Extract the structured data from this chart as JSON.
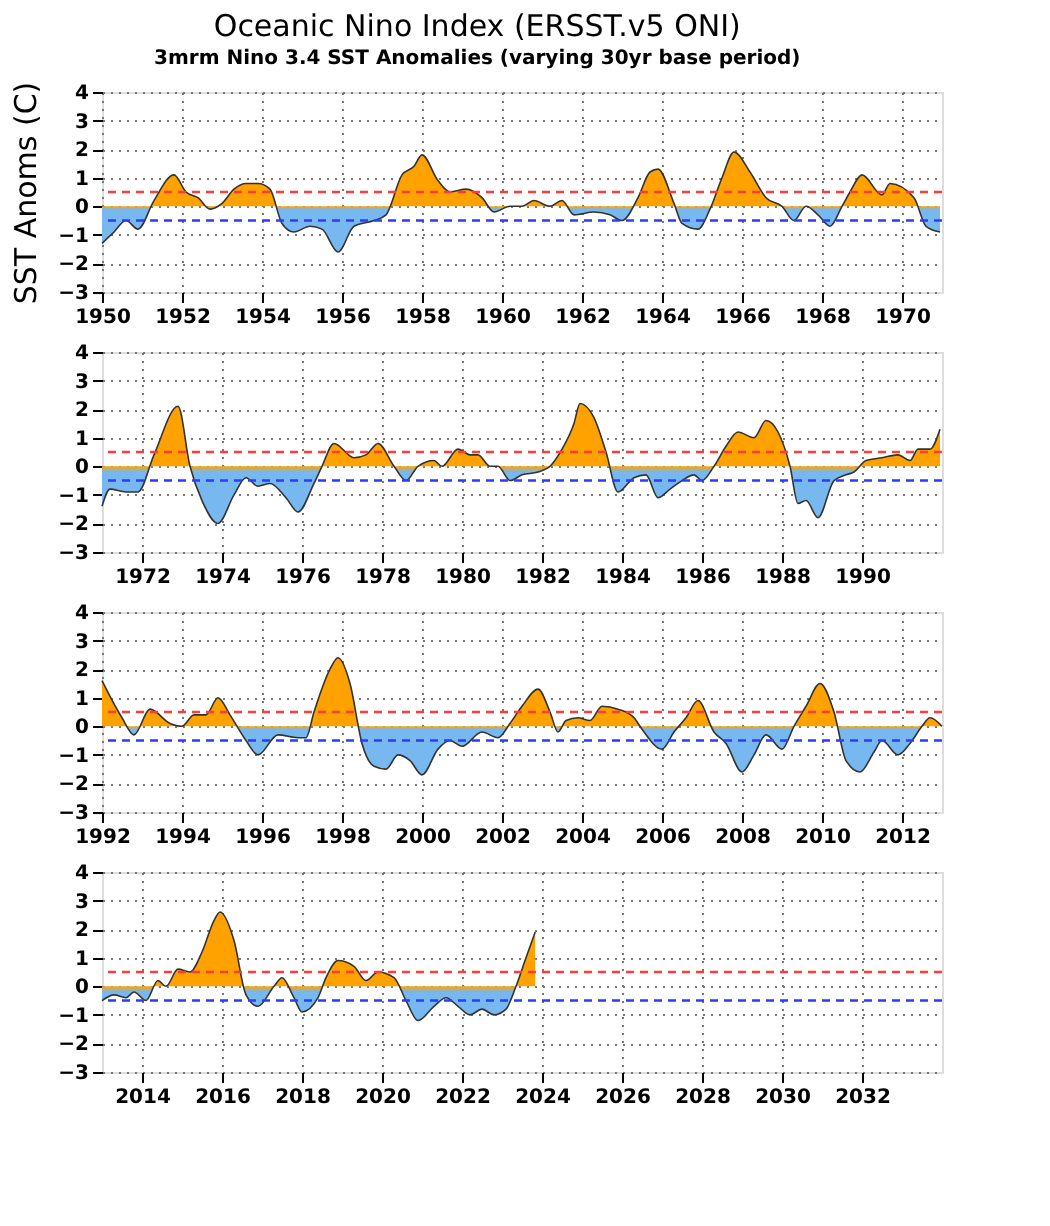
{
  "chart_data": [
    {
      "type": "area",
      "title": "Oceanic Nino Index (ERSST.v5 ONI)",
      "subtitle": "3mrm Nino 3.4 SST Anomalies (varying 30yr base period)",
      "ylabel": "SST Anoms (C)",
      "xlim": [
        1950,
        1971
      ],
      "xticks": [
        1950,
        1952,
        1954,
        1956,
        1958,
        1960,
        1962,
        1964,
        1966,
        1968,
        1970
      ],
      "ylim": [
        -3,
        4
      ],
      "yticks": [
        -3,
        -2,
        -1,
        0,
        1,
        2,
        3,
        4
      ],
      "grid": true,
      "ref_lines": [
        {
          "axis": "y",
          "value": 0.5,
          "color": "#ff3b3b",
          "line_style": "dashed"
        },
        {
          "axis": "y",
          "value": -0.5,
          "color": "#2b3bff",
          "line_style": "dashed"
        }
      ],
      "series": [
        {
          "color": "#333333",
          "colors": [
            "#78b8f0",
            "#78b8f0",
            "#78b8f0",
            "#78b8f0",
            "#ffa200",
            "#ffa200",
            "#ffa200",
            "#ffa200",
            "#78b8f0",
            "#ffa200",
            "#ffa200",
            "#ffa200",
            "#ffa200",
            "#ffa200",
            "#78b8f0",
            "#78b8f0",
            "#78b8f0",
            "#78b8f0",
            "#78b8f0",
            "#78b8f0",
            "#78b8f0",
            "#78b8f0",
            "#ffa200",
            "#ffa200",
            "#ffa200",
            "#ffa200",
            "#ffa200",
            "#ffa200",
            "#ffa200",
            "#78b8f0",
            "#ffa200",
            "#ffa200",
            "#ffa200",
            "#ffa200",
            "#ffa200",
            "#78b8f0",
            "#78b8f0",
            "#78b8f0",
            "#78b8f0",
            "#ffa200",
            "#ffa200",
            "#ffa200",
            "#ffa200",
            "#78b8f0",
            "#78b8f0",
            "#78b8f0",
            "#ffa200",
            "#ffa200",
            "#ffa200",
            "#ffa200",
            "#ffa200",
            "#78b8f0",
            "#ffa200",
            "#78b8f0",
            "#78b8f0",
            "#ffa200",
            "#ffa200",
            "#ffa200",
            "#ffa200",
            "#ffa200",
            "#ffa200",
            "#78b8f0",
            "#78b8f0"
          ],
          "x": [
            1950.0,
            1950.3,
            1950.6,
            1950.9,
            1951.3,
            1951.8,
            1952.1,
            1952.4,
            1952.7,
            1953.0,
            1953.3,
            1953.6,
            1953.9,
            1954.2,
            1954.5,
            1954.8,
            1955.2,
            1955.5,
            1955.9,
            1956.3,
            1956.8,
            1957.1,
            1957.5,
            1957.8,
            1958.0,
            1958.4,
            1958.7,
            1959.1,
            1959.5,
            1959.8,
            1960.2,
            1960.5,
            1960.8,
            1961.2,
            1961.5,
            1961.8,
            1962.3,
            1962.7,
            1963.0,
            1963.4,
            1963.7,
            1963.9,
            1964.3,
            1964.5,
            1964.9,
            1965.2,
            1965.5,
            1965.8,
            1966.2,
            1966.6,
            1967.0,
            1967.3,
            1967.6,
            1967.9,
            1968.2,
            1968.5,
            1968.7,
            1969.0,
            1969.5,
            1969.7,
            1970.3,
            1970.6,
            1970.95
          ],
          "values": [
            -1.3,
            -0.9,
            -0.5,
            -0.8,
            0.2,
            1.1,
            0.5,
            0.3,
            -0.1,
            0.1,
            0.6,
            0.8,
            0.8,
            0.6,
            -0.6,
            -0.9,
            -0.7,
            -0.8,
            -1.6,
            -0.7,
            -0.5,
            -0.3,
            1.1,
            1.4,
            1.8,
            0.9,
            0.5,
            0.6,
            0.3,
            -0.2,
            0.0,
            0.0,
            0.2,
            0.0,
            0.2,
            -0.3,
            -0.2,
            -0.3,
            -0.5,
            0.3,
            1.2,
            1.3,
            0.1,
            -0.6,
            -0.8,
            -0.1,
            1.0,
            1.9,
            1.2,
            0.3,
            0.0,
            -0.5,
            0.0,
            -0.3,
            -0.7,
            0.0,
            0.5,
            1.1,
            0.4,
            0.8,
            0.3,
            -0.7,
            -0.9
          ]
        }
      ]
    },
    {
      "type": "area",
      "xlim": [
        1971,
        1992
      ],
      "xticks": [
        1972,
        1974,
        1976,
        1978,
        1980,
        1982,
        1984,
        1986,
        1988,
        1990
      ],
      "ylim": [
        -3,
        4
      ],
      "yticks": [
        -3,
        -2,
        -1,
        0,
        1,
        2,
        3,
        4
      ],
      "grid": true,
      "ref_lines": [
        {
          "axis": "y",
          "value": 0.5,
          "color": "#ff3b3b",
          "line_style": "dashed"
        },
        {
          "axis": "y",
          "value": -0.5,
          "color": "#2b3bff",
          "line_style": "dashed"
        }
      ],
      "series": [
        {
          "color": "#333333",
          "colors": [
            "#78b8f0",
            "#78b8f0",
            "#78b8f0",
            "#78b8f0",
            "#ffa200",
            "#ffa200",
            "#ffa200",
            "#78b8f0",
            "#78b8f0",
            "#78b8f0",
            "#78b8f0",
            "#78b8f0",
            "#78b8f0",
            "#78b8f0",
            "#78b8f0",
            "#78b8f0",
            "#ffa200",
            "#ffa200",
            "#ffa200",
            "#ffa200",
            "#ffa200",
            "#ffa200",
            "#78b8f0",
            "#ffa200",
            "#ffa200",
            "#ffa200",
            "#ffa200",
            "#ffa200",
            "#ffa200",
            "#ffa200",
            "#ffa200",
            "#78b8f0",
            "#78b8f0",
            "#78b8f0",
            "#ffa200",
            "#ffa200",
            "#ffa200",
            "#ffa200",
            "#ffa200",
            "#ffa200",
            "#78b8f0",
            "#78b8f0",
            "#78b8f0",
            "#78b8f0",
            "#78b8f0",
            "#78b8f0",
            "#78b8f0",
            "#78b8f0",
            "#ffa200",
            "#ffa200",
            "#ffa200",
            "#ffa200",
            "#ffa200",
            "#ffa200",
            "#ffa200",
            "#78b8f0",
            "#78b8f0",
            "#78b8f0",
            "#78b8f0",
            "#78b8f0",
            "#78b8f0",
            "#ffa200",
            "#ffa200",
            "#ffa200",
            "#ffa200",
            "#ffa200",
            "#ffa200",
            "#ffa200"
          ],
          "x": [
            1971.0,
            1971.2,
            1971.6,
            1971.9,
            1972.3,
            1972.9,
            1973.2,
            1973.5,
            1973.9,
            1974.3,
            1974.6,
            1974.9,
            1975.2,
            1975.6,
            1975.9,
            1976.3,
            1976.5,
            1976.8,
            1977.3,
            1977.6,
            1977.9,
            1978.3,
            1978.6,
            1978.9,
            1979.3,
            1979.5,
            1979.9,
            1980.2,
            1980.4,
            1980.7,
            1980.9,
            1981.2,
            1981.5,
            1981.9,
            1982.2,
            1982.5,
            1982.8,
            1982.95,
            1983.3,
            1983.6,
            1983.9,
            1984.3,
            1984.6,
            1984.9,
            1985.2,
            1985.5,
            1985.8,
            1986.0,
            1986.3,
            1986.6,
            1986.9,
            1987.3,
            1987.6,
            1987.9,
            1988.2,
            1988.4,
            1988.6,
            1988.9,
            1989.3,
            1989.6,
            1989.8,
            1990.1,
            1990.5,
            1990.9,
            1991.2,
            1991.4,
            1991.7,
            1991.95
          ],
          "values": [
            -1.4,
            -0.8,
            -0.9,
            -0.9,
            0.4,
            2.1,
            0.0,
            -1.2,
            -2.0,
            -1.0,
            -0.4,
            -0.7,
            -0.6,
            -1.1,
            -1.6,
            -0.6,
            0.0,
            0.8,
            0.3,
            0.4,
            0.8,
            0.0,
            -0.5,
            0.0,
            0.2,
            0.0,
            0.6,
            0.4,
            0.4,
            0.0,
            0.0,
            -0.5,
            -0.3,
            -0.2,
            0.0,
            0.6,
            1.5,
            2.2,
            1.7,
            0.5,
            -0.9,
            -0.4,
            -0.3,
            -1.1,
            -0.8,
            -0.5,
            -0.3,
            -0.5,
            0.0,
            0.7,
            1.2,
            1.0,
            1.6,
            1.2,
            0.0,
            -1.3,
            -1.2,
            -1.8,
            -0.5,
            -0.3,
            -0.2,
            0.2,
            0.3,
            0.4,
            0.2,
            0.6,
            0.6,
            1.3
          ]
        }
      ]
    },
    {
      "type": "area",
      "xlim": [
        1992,
        2013
      ],
      "xticks": [
        1992,
        1994,
        1996,
        1998,
        2000,
        2002,
        2004,
        2006,
        2008,
        2010,
        2012
      ],
      "ylim": [
        -3,
        4
      ],
      "yticks": [
        -3,
        -2,
        -1,
        0,
        1,
        2,
        3,
        4
      ],
      "grid": true,
      "ref_lines": [
        {
          "axis": "y",
          "value": 0.5,
          "color": "#ff3b3b",
          "line_style": "dashed"
        },
        {
          "axis": "y",
          "value": -0.5,
          "color": "#2b3bff",
          "line_style": "dashed"
        }
      ],
      "series": [
        {
          "color": "#333333",
          "colors": [
            "#ffa200",
            "#ffa200",
            "#78b8f0",
            "#ffa200",
            "#ffa200",
            "#ffa200",
            "#ffa200",
            "#ffa200",
            "#ffa200",
            "#ffa200",
            "#78b8f0",
            "#78b8f0",
            "#78b8f0",
            "#78b8f0",
            "#78b8f0",
            "#ffa200",
            "#ffa200",
            "#ffa200",
            "#ffa200",
            "#78b8f0",
            "#78b8f0",
            "#78b8f0",
            "#78b8f0",
            "#78b8f0",
            "#78b8f0",
            "#78b8f0",
            "#78b8f0",
            "#78b8f0",
            "#78b8f0",
            "#78b8f0",
            "#ffa200",
            "#ffa200",
            "#ffa200",
            "#ffa200",
            "#78b8f0",
            "#ffa200",
            "#ffa200",
            "#ffa200",
            "#ffa200",
            "#ffa200",
            "#ffa200",
            "#78b8f0",
            "#78b8f0",
            "#78b8f0",
            "#ffa200",
            "#ffa200",
            "#78b8f0",
            "#78b8f0",
            "#78b8f0",
            "#78b8f0",
            "#78b8f0",
            "#78b8f0",
            "#ffa200",
            "#ffa200",
            "#ffa200",
            "#ffa200",
            "#78b8f0",
            "#78b8f0",
            "#78b8f0",
            "#78b8f0",
            "#78b8f0",
            "#78b8f0",
            "#ffa200",
            "#ffa200",
            "#ffa200"
          ],
          "x": [
            1992.0,
            1992.5,
            1992.8,
            1993.2,
            1993.7,
            1994.0,
            1994.3,
            1994.6,
            1994.9,
            1995.2,
            1995.6,
            1995.9,
            1996.4,
            1996.9,
            1997.1,
            1997.3,
            1997.7,
            1997.9,
            1998.2,
            1998.5,
            1998.8,
            1999.1,
            1999.4,
            1999.7,
            2000.0,
            2000.4,
            2000.7,
            2001.0,
            2001.5,
            2001.9,
            2002.2,
            2002.5,
            2002.9,
            2003.2,
            2003.4,
            2003.6,
            2003.9,
            2004.2,
            2004.5,
            2004.9,
            2005.3,
            2005.5,
            2006.0,
            2006.3,
            2006.6,
            2006.9,
            2007.3,
            2007.6,
            2008.0,
            2008.3,
            2008.6,
            2009.0,
            2009.3,
            2009.6,
            2009.95,
            2010.3,
            2010.6,
            2010.95,
            2011.3,
            2011.5,
            2011.9,
            2012.2,
            2012.5,
            2012.7,
            2013.0
          ],
          "values": [
            1.6,
            0.3,
            -0.3,
            0.6,
            0.1,
            0.0,
            0.4,
            0.4,
            1.0,
            0.4,
            -0.5,
            -1.0,
            -0.3,
            -0.4,
            -0.4,
            0.5,
            2.0,
            2.4,
            1.5,
            -0.6,
            -1.4,
            -1.5,
            -1.0,
            -1.2,
            -1.7,
            -0.8,
            -0.5,
            -0.7,
            -0.2,
            -0.4,
            0.1,
            0.7,
            1.3,
            0.5,
            -0.2,
            0.2,
            0.3,
            0.2,
            0.7,
            0.6,
            0.3,
            -0.1,
            -0.8,
            -0.2,
            0.3,
            0.9,
            -0.2,
            -0.6,
            -1.6,
            -1.0,
            -0.3,
            -0.8,
            0.0,
            0.7,
            1.5,
            0.5,
            -1.2,
            -1.6,
            -0.9,
            -0.5,
            -1.0,
            -0.6,
            0.0,
            0.3,
            0.0
          ]
        }
      ]
    },
    {
      "type": "area",
      "xlim": [
        2013,
        2034
      ],
      "xticks": [
        2014,
        2016,
        2018,
        2020,
        2022,
        2024,
        2026,
        2028,
        2030,
        2032
      ],
      "ylim": [
        -3,
        4
      ],
      "yticks": [
        -3,
        -2,
        -1,
        0,
        1,
        2,
        3,
        4
      ],
      "grid": true,
      "ref_lines": [
        {
          "axis": "y",
          "value": 0.5,
          "color": "#ff3b3b",
          "line_style": "dashed"
        },
        {
          "axis": "y",
          "value": -0.5,
          "color": "#2b3bff",
          "line_style": "dashed"
        }
      ],
      "series": [
        {
          "color": "#333333",
          "colors": [
            "#78b8f0",
            "#78b8f0",
            "#78b8f0",
            "#78b8f0",
            "#78b8f0",
            "#ffa200",
            "#ffa200",
            "#ffa200",
            "#ffa200",
            "#ffa200",
            "#ffa200",
            "#ffa200",
            "#ffa200",
            "#78b8f0",
            "#78b8f0",
            "#ffa200",
            "#ffa200",
            "#78b8f0",
            "#78b8f0",
            "#78b8f0",
            "#ffa200",
            "#ffa200",
            "#ffa200",
            "#ffa200",
            "#ffa200",
            "#ffa200",
            "#78b8f0",
            "#78b8f0",
            "#78b8f0",
            "#78b8f0",
            "#78b8f0",
            "#78b8f0",
            "#78b8f0",
            "#78b8f0",
            "#78b8f0",
            "#ffa200",
            "#ffa200",
            "#ffa200"
          ],
          "x": [
            2013.0,
            2013.3,
            2013.6,
            2013.8,
            2014.1,
            2014.4,
            2014.6,
            2014.9,
            2015.2,
            2015.5,
            2015.8,
            2015.95,
            2016.3,
            2016.6,
            2016.9,
            2017.3,
            2017.5,
            2017.8,
            2018.0,
            2018.4,
            2018.6,
            2018.9,
            2019.3,
            2019.6,
            2019.9,
            2020.3,
            2020.6,
            2020.9,
            2021.3,
            2021.6,
            2021.9,
            2022.2,
            2022.5,
            2022.8,
            2023.1,
            2023.35,
            2023.6,
            2023.83
          ],
          "values": [
            -0.5,
            -0.3,
            -0.4,
            -0.2,
            -0.5,
            0.2,
            0.0,
            0.6,
            0.5,
            1.2,
            2.3,
            2.6,
            1.6,
            -0.3,
            -0.7,
            0.0,
            0.3,
            -0.4,
            -0.9,
            -0.4,
            0.3,
            0.9,
            0.7,
            0.2,
            0.5,
            0.3,
            -0.5,
            -1.2,
            -0.7,
            -0.4,
            -0.7,
            -1.0,
            -0.8,
            -1.0,
            -0.8,
            0.0,
            1.0,
            1.9
          ]
        }
      ]
    }
  ]
}
